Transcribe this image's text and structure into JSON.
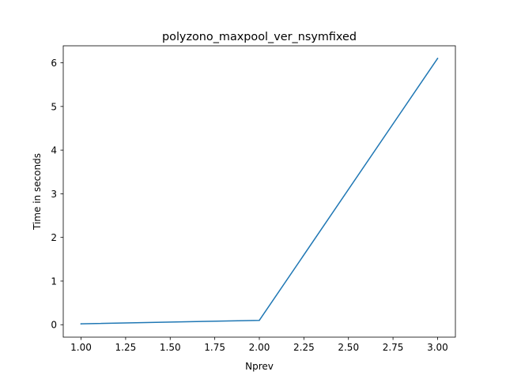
{
  "chart_data": {
    "type": "line",
    "title": "polyzono_maxpool_ver_nsymfixed",
    "xlabel": "Nprev",
    "ylabel": "Time in seconds",
    "xlim": [
      0.9,
      3.1
    ],
    "ylim": [
      -0.285,
      6.39
    ],
    "xticks": [
      1.0,
      1.25,
      1.5,
      1.75,
      2.0,
      2.25,
      2.5,
      2.75,
      3.0
    ],
    "xtick_labels": [
      "1.00",
      "1.25",
      "1.50",
      "1.75",
      "2.00",
      "2.25",
      "2.50",
      "2.75",
      "3.00"
    ],
    "yticks": [
      0,
      1,
      2,
      3,
      4,
      5,
      6
    ],
    "ytick_labels": [
      "0",
      "1",
      "2",
      "3",
      "4",
      "5",
      "6"
    ],
    "grid": false,
    "series": [
      {
        "x": [
          1.0,
          2.0,
          3.0
        ],
        "values": [
          0.02,
          0.1,
          6.1
        ],
        "color": "#1f77b4"
      }
    ]
  }
}
